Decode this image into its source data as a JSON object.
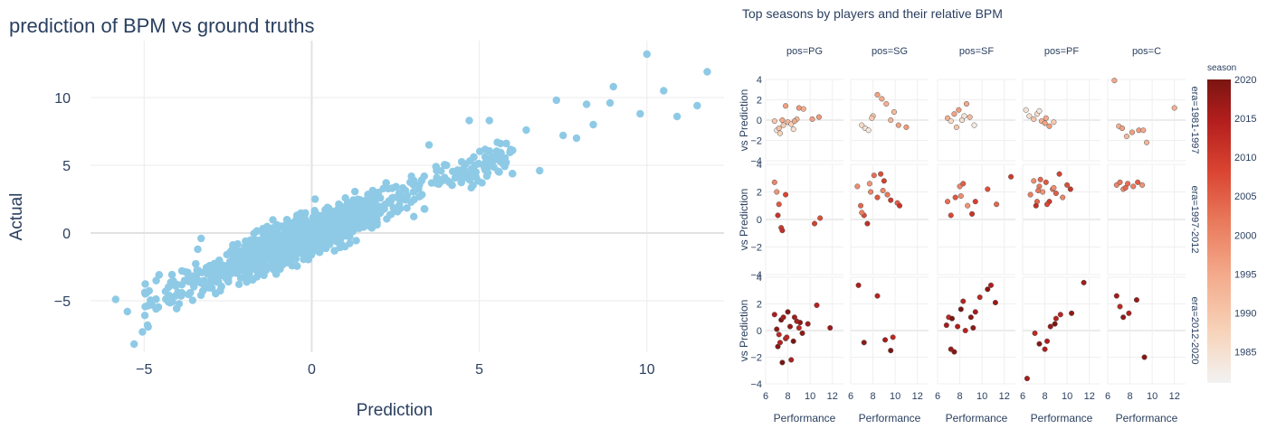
{
  "chart_data": [
    {
      "type": "scatter",
      "title": "prediction of BPM vs ground truths",
      "xlabel": "Prediction",
      "ylabel": "Actual",
      "xlim": [
        -6.6,
        12.3
      ],
      "ylim": [
        -8.8,
        14.2
      ],
      "xticks": [
        -5,
        0,
        5,
        10
      ],
      "yticks": [
        -5,
        0,
        5,
        10
      ],
      "marker_color": "#8ecae6",
      "grid": true,
      "trend": {
        "slope": 1.0,
        "intercept": 0.0
      },
      "notable_points": [
        {
          "x": -5.85,
          "y": -4.9
        },
        {
          "x": -5.3,
          "y": -8.2
        },
        {
          "x": -5.5,
          "y": -5.8
        },
        {
          "x": -5.05,
          "y": -7.3
        },
        {
          "x": -4.9,
          "y": -6.8
        },
        {
          "x": -3.4,
          "y": -1.2
        },
        {
          "x": -3.3,
          "y": -0.4
        },
        {
          "x": 0.1,
          "y": 2.5
        },
        {
          "x": 3.5,
          "y": 6.5
        },
        {
          "x": 4.7,
          "y": 8.3
        },
        {
          "x": 5.3,
          "y": 8.3
        },
        {
          "x": 6.4,
          "y": 7.6
        },
        {
          "x": 7.3,
          "y": 9.8
        },
        {
          "x": 8.2,
          "y": 9.5
        },
        {
          "x": 8.9,
          "y": 9.6
        },
        {
          "x": 9.0,
          "y": 10.8
        },
        {
          "x": 10.0,
          "y": 13.2
        },
        {
          "x": 10.5,
          "y": 10.5
        },
        {
          "x": 10.9,
          "y": 8.6
        },
        {
          "x": 11.5,
          "y": 9.4
        },
        {
          "x": 11.8,
          "y": 11.9
        },
        {
          "x": 7.5,
          "y": 7.2
        },
        {
          "x": 8.4,
          "y": 8.0
        },
        {
          "x": 9.8,
          "y": 8.8
        },
        {
          "x": 6.8,
          "y": 4.6
        },
        {
          "x": 5.8,
          "y": 5.2
        },
        {
          "x": 7.9,
          "y": 7.0
        }
      ]
    },
    {
      "type": "scatter",
      "title": "Top seasons by players and their relative BPM",
      "xlabel": "Performance",
      "ylabel": "vs Prediction",
      "xlim": [
        6,
        13
      ],
      "ylim": [
        -4,
        4
      ],
      "xticks": [
        6,
        8,
        10,
        12
      ],
      "yticks": [
        -4,
        -2,
        0,
        2,
        4
      ],
      "col_labels": [
        "pos=PG",
        "pos=SG",
        "pos=SF",
        "pos=PF",
        "pos=C"
      ],
      "row_labels": [
        "era=1981-1997",
        "era=1997-2012",
        "era=2012-2020"
      ],
      "colorbar": {
        "title": "season",
        "range": [
          1981,
          2020
        ],
        "ticks": [
          1985,
          1990,
          1995,
          2000,
          2005,
          2010,
          2015,
          2020
        ],
        "colors": [
          "#f2f2f2",
          "#f7d3b9",
          "#f3a98a",
          "#e97a5c",
          "#d94431",
          "#b41f1e",
          "#7a1511"
        ]
      },
      "panels": [
        [
          {
            "x": [
              6.8,
              7.0,
              7.3,
              7.5,
              7.8,
              8.0,
              8.3,
              8.5,
              8.8,
              9.0,
              9.4,
              10.2,
              10.8,
              7.2,
              8.6,
              7.6
            ],
            "y": [
              -0.1,
              -1.0,
              -1.3,
              0.0,
              1.4,
              -0.2,
              -0.4,
              -0.9,
              0.1,
              1.2,
              1.1,
              0.1,
              0.3,
              -0.8,
              -0.1,
              -0.5
            ],
            "s": [
              1990,
              1984,
              1987,
              1995,
              1996,
              1993,
              1988,
              1985,
              1992,
              1997,
              1994,
              1996,
              1997,
              1991,
              1995,
              1989
            ]
          },
          {
            "x": [
              7.0,
              7.3,
              7.6,
              8.0,
              8.4,
              8.8,
              9.2,
              9.6,
              10.3,
              11.0,
              7.9,
              9.9
            ],
            "y": [
              -0.5,
              -0.8,
              -1.0,
              0.4,
              2.5,
              2.1,
              1.6,
              0.0,
              -0.5,
              -0.7,
              0.2,
              0.8
            ],
            "s": [
              1986,
              1984,
              1983,
              1990,
              1996,
              1995,
              1994,
              1993,
              1996,
              1997,
              1989,
              1992
            ]
          },
          {
            "x": [
              6.9,
              7.2,
              7.5,
              7.9,
              8.2,
              8.6,
              8.9,
              9.3,
              7.7,
              8.4
            ],
            "y": [
              0.2,
              -0.1,
              0.6,
              1.0,
              0.0,
              1.6,
              0.3,
              -0.5,
              -0.7,
              0.4
            ],
            "s": [
              1994,
              1986,
              1996,
              1997,
              1985,
              1995,
              1992,
              1983,
              1990,
              1984
            ]
          },
          {
            "x": [
              6.3,
              6.6,
              7.0,
              7.3,
              7.7,
              8.0,
              8.4,
              8.8,
              7.5,
              8.1
            ],
            "y": [
              1.0,
              0.4,
              0.1,
              0.6,
              -0.1,
              -0.3,
              -0.6,
              -0.2,
              0.9,
              0.2
            ],
            "s": [
              1984,
              1985,
              1990,
              1986,
              1994,
              1996,
              1997,
              1989,
              1983,
              1995
            ]
          },
          {
            "x": [
              6.6,
              7.0,
              7.3,
              7.7,
              8.2,
              8.8,
              9.2,
              9.5,
              12.0
            ],
            "y": [
              3.9,
              -0.6,
              -0.8,
              -1.6,
              -1.2,
              -1.0,
              -1.0,
              -2.2,
              1.2
            ],
            "s": [
              1995,
              1994,
              1996,
              1992,
              1996,
              1997,
              1995,
              1993,
              1994
            ]
          }
        ],
        [
          {
            "x": [
              6.8,
              7.0,
              7.2,
              7.4,
              7.8,
              7.1,
              7.5,
              10.4,
              10.9
            ],
            "y": [
              2.7,
              2.0,
              1.1,
              -0.6,
              1.8,
              0.3,
              -0.8,
              -0.3,
              0.1
            ],
            "s": [
              2000,
              1998,
              2006,
              2010,
              2008,
              2011,
              2012,
              2009,
              2007
            ]
          },
          {
            "x": [
              6.6,
              6.9,
              7.2,
              7.5,
              7.8,
              8.1,
              8.4,
              8.7,
              9.0,
              9.3,
              9.6,
              10.2,
              10.4,
              7.0,
              7.7,
              8.9
            ],
            "y": [
              2.4,
              1.0,
              0.3,
              -0.3,
              2.0,
              3.2,
              1.6,
              3.3,
              2.8,
              1.8,
              1.4,
              1.2,
              1.0,
              0.5,
              2.6,
              2.1
            ],
            "s": [
              1999,
              2004,
              2008,
              2012,
              2000,
              2003,
              2006,
              2007,
              2009,
              2002,
              2010,
              2005,
              2011,
              2001,
              1998,
              2000
            ]
          },
          {
            "x": [
              6.9,
              7.2,
              7.6,
              8.0,
              8.3,
              8.7,
              9.1,
              9.4,
              10.5,
              11.3,
              12.6,
              8.1
            ],
            "y": [
              1.3,
              0.3,
              1.6,
              2.4,
              2.6,
              1.0,
              0.4,
              1.3,
              2.2,
              1.1,
              3.1,
              1.7
            ],
            "s": [
              2003,
              2008,
              2006,
              2000,
              2005,
              1998,
              2011,
              2009,
              2007,
              2004,
              2010,
              1999
            ]
          },
          {
            "x": [
              6.7,
              7.0,
              7.3,
              7.5,
              7.8,
              8.1,
              8.4,
              8.7,
              9.0,
              9.3,
              9.6,
              10.0,
              10.3,
              7.2,
              7.6,
              8.2,
              8.8,
              7.4
            ],
            "y": [
              1.8,
              2.8,
              1.3,
              2.4,
              2.0,
              2.7,
              1.3,
              2.2,
              1.9,
              3.3,
              1.6,
              2.5,
              2.2,
              1.0,
              2.9,
              1.1,
              2.3,
              2.1
            ],
            "s": [
              2001,
              1999,
              2004,
              2002,
              1998,
              2006,
              2010,
              2003,
              2005,
              2009,
              2000,
              2007,
              2011,
              2012,
              2004,
              2008,
              1999,
              2002
            ]
          },
          {
            "x": [
              6.8,
              7.1,
              7.4,
              7.8,
              8.3,
              8.7,
              9.1,
              7.6
            ],
            "y": [
              2.5,
              2.7,
              2.2,
              2.6,
              2.4,
              2.7,
              2.5,
              2.3
            ],
            "s": [
              2000,
              2002,
              1999,
              2003,
              2001,
              2005,
              1998,
              2004
            ]
          }
        ],
        [
          {
            "x": [
              6.8,
              7.0,
              7.2,
              7.4,
              7.6,
              7.8,
              8.0,
              8.2,
              8.5,
              8.8,
              9.0,
              9.3,
              9.8,
              10.6,
              11.8,
              7.1,
              7.5,
              8.3,
              9.1,
              7.9,
              8.6,
              7.3
            ],
            "y": [
              1.2,
              0.1,
              -0.3,
              0.8,
              1.0,
              -0.6,
              1.4,
              0.3,
              -0.8,
              0.7,
              0.2,
              -0.2,
              0.5,
              1.9,
              0.2,
              -1.2,
              -2.4,
              -2.2,
              0.6,
              -0.5,
              1.0,
              -0.9
            ],
            "s": [
              2015,
              2018,
              2013,
              2020,
              2016,
              2014,
              2019,
              2017,
              2020,
              2015,
              2013,
              2018,
              2016,
              2014,
              2017,
              2019,
              2020,
              2015,
              2018,
              2013,
              2016,
              2014
            ]
          },
          {
            "x": [
              6.7,
              7.2,
              8.4,
              9.1,
              9.6,
              9.8
            ],
            "y": [
              3.4,
              -0.9,
              2.6,
              -0.7,
              -1.5,
              -0.5
            ],
            "s": [
              2015,
              2018,
              2014,
              2016,
              2020,
              2013
            ]
          },
          {
            "x": [
              6.8,
              7.0,
              7.2,
              7.5,
              7.8,
              8.1,
              8.5,
              9.0,
              9.4,
              9.8,
              10.5,
              10.8,
              11.2,
              7.3,
              8.3,
              9.2
            ],
            "y": [
              0.4,
              1.0,
              -1.4,
              -1.6,
              0.3,
              1.6,
              0.0,
              1.0,
              1.4,
              2.5,
              3.1,
              3.4,
              2.1,
              0.9,
              2.2,
              0.2
            ],
            "s": [
              2016,
              2013,
              2017,
              2019,
              2015,
              2020,
              2014,
              2018,
              2016,
              2013,
              2019,
              2015,
              2017,
              2020,
              2014,
              2018
            ]
          },
          {
            "x": [
              6.4,
              7.1,
              7.5,
              8.0,
              8.5,
              8.9,
              9.4,
              10.4,
              11.5,
              8.2,
              9.0
            ],
            "y": [
              -3.6,
              -0.2,
              -1.0,
              -1.4,
              0.3,
              0.5,
              1.2,
              1.3,
              3.6,
              -0.8,
              0.9
            ],
            "s": [
              2016,
              2013,
              2019,
              2015,
              2017,
              2020,
              2014,
              2018,
              2016,
              2015,
              2014
            ]
          },
          {
            "x": [
              6.8,
              7.1,
              7.4,
              7.9,
              9.3,
              8.6
            ],
            "y": [
              2.6,
              1.8,
              1.0,
              1.3,
              -2.0,
              2.3
            ],
            "s": [
              2016,
              2013,
              2018,
              2015,
              2019,
              2017
            ]
          }
        ]
      ]
    }
  ]
}
